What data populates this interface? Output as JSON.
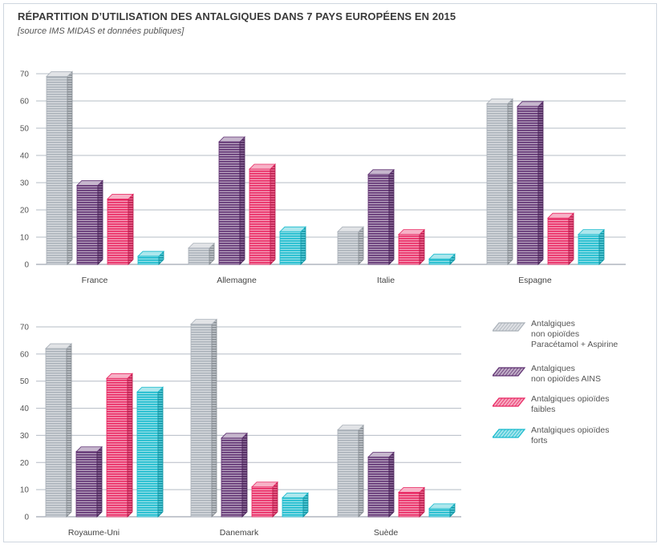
{
  "title": "RÉPARTITION D’UTILISATION DES ANTALGIQUES DANS 7 PAYS EUROPÉENS EN 2015",
  "subtitle": "[source IMS MIDAS et données publiques]",
  "legend": [
    {
      "lines": [
        "Antalgiques",
        "non opioïdes",
        "Paracétamol + Aspirine"
      ],
      "color": "#a9b0b8"
    },
    {
      "lines": [
        "Antalgiques",
        "non opioïdes AINS"
      ],
      "color": "#5c2d6f"
    },
    {
      "lines": [
        "Antalgiques opioïdes",
        "faibles"
      ],
      "color": "#e8235f"
    },
    {
      "lines": [
        "Antalgiques opioïdes",
        "forts"
      ],
      "color": "#14b9cc"
    }
  ],
  "chart_data": [
    {
      "type": "bar",
      "categories": [
        "France",
        "Allemagne",
        "Italie",
        "Espagne"
      ],
      "series": [
        {
          "values": [
            69,
            6,
            12,
            59
          ]
        },
        {
          "values": [
            29,
            45,
            33,
            58
          ]
        },
        {
          "values": [
            24,
            35,
            11,
            17
          ]
        },
        {
          "values": [
            3,
            12,
            2,
            11
          ]
        }
      ],
      "yticks": [
        "0",
        "10",
        "20",
        "30",
        "40",
        "50",
        "60",
        "70"
      ],
      "ylim": [
        0,
        70
      ],
      "grid": true
    },
    {
      "type": "bar",
      "categories": [
        "Royaume-Uni",
        "Danemark",
        "Suède"
      ],
      "series": [
        {
          "values": [
            62,
            71,
            32
          ]
        },
        {
          "values": [
            24,
            29,
            22
          ]
        },
        {
          "values": [
            51,
            11,
            9
          ]
        },
        {
          "values": [
            46,
            7,
            3
          ]
        }
      ],
      "yticks": [
        "0",
        "10",
        "20",
        "30",
        "40",
        "50",
        "60",
        "70"
      ],
      "ylim": [
        0,
        70
      ],
      "grid": true
    }
  ]
}
